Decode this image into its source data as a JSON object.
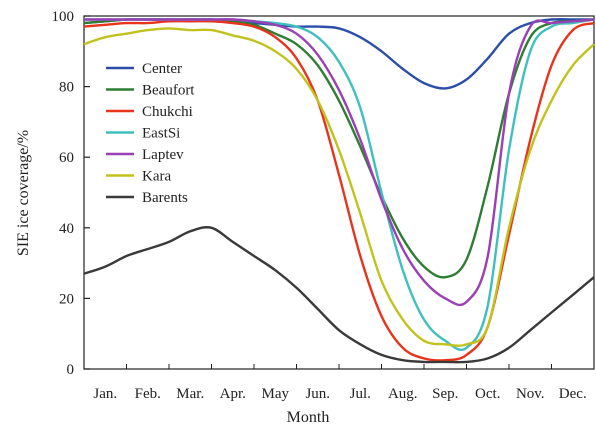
{
  "chart_data": {
    "type": "line",
    "title": "",
    "xlabel": "Month",
    "ylabel": "SIE ice coverage/%",
    "ylim": [
      0,
      100
    ],
    "xlim": [
      0,
      12
    ],
    "yticks": [
      0,
      20,
      40,
      60,
      80,
      100
    ],
    "grid": false,
    "legend_position": "top-left",
    "month_labels": [
      "Jan.",
      "Feb.",
      "Mar.",
      "Apr.",
      "May",
      "Jun.",
      "Jul.",
      "Aug.",
      "Sep.",
      "Oct.",
      "Nov.",
      "Dec."
    ],
    "x": [
      0,
      0.5,
      1,
      1.5,
      2,
      2.5,
      3,
      3.5,
      4,
      4.5,
      5,
      5.5,
      6,
      6.5,
      7,
      7.5,
      8,
      8.5,
      9,
      9.5,
      10,
      10.5,
      11,
      11.5,
      12
    ],
    "series": [
      {
        "name": "Center",
        "color": "#2b4ea8",
        "values": [
          98,
          98.5,
          99,
          99,
          99,
          99,
          99,
          98.5,
          98,
          97.5,
          97,
          97,
          96.5,
          94,
          90,
          85,
          81,
          79.5,
          82,
          88,
          95,
          98,
          99,
          99,
          99
        ]
      },
      {
        "name": "Beaufort",
        "color": "#2e7d32",
        "values": [
          98,
          98.5,
          99,
          99,
          99,
          99,
          99,
          98.5,
          97.5,
          95,
          92,
          86,
          76,
          63,
          49,
          37,
          29,
          26,
          31,
          52,
          78,
          94,
          98,
          98.5,
          99
        ]
      },
      {
        "name": "Chukchi",
        "color": "#e8341c",
        "values": [
          97,
          97.5,
          98,
          98,
          98.5,
          98.5,
          98.5,
          98,
          97,
          94,
          88,
          76,
          55,
          32,
          15,
          6,
          3,
          2.5,
          4,
          12,
          38,
          65,
          86,
          96,
          98
        ]
      },
      {
        "name": "EastSi",
        "color": "#3fbfbf",
        "values": [
          99,
          99,
          99,
          99,
          99,
          99,
          99,
          99,
          98.5,
          98,
          97,
          94,
          87,
          74,
          50,
          28,
          14,
          8,
          6,
          18,
          62,
          90,
          97,
          98,
          99
        ]
      },
      {
        "name": "Laptev",
        "color": "#9b3fb5",
        "values": [
          99,
          99,
          99,
          99,
          99,
          99,
          99,
          99,
          98.5,
          97.5,
          95,
          89,
          79,
          65,
          48,
          34,
          25,
          20,
          19,
          32,
          78,
          97,
          98,
          98.5,
          99
        ]
      },
      {
        "name": "Kara",
        "color": "#c2c21f",
        "values": [
          92,
          94,
          95,
          96,
          96.5,
          96,
          96,
          94.5,
          93,
          90,
          85,
          76,
          62,
          44,
          25,
          14,
          8,
          7,
          7,
          12,
          40,
          62,
          76,
          86,
          92
        ]
      },
      {
        "name": "Barents",
        "color": "#3a3a3a",
        "values": [
          27,
          29,
          32,
          34,
          36,
          39,
          40,
          36,
          32,
          28,
          23,
          17,
          11,
          7,
          4,
          2.5,
          2,
          2,
          2,
          3,
          6,
          11,
          16,
          21,
          26
        ]
      }
    ]
  }
}
